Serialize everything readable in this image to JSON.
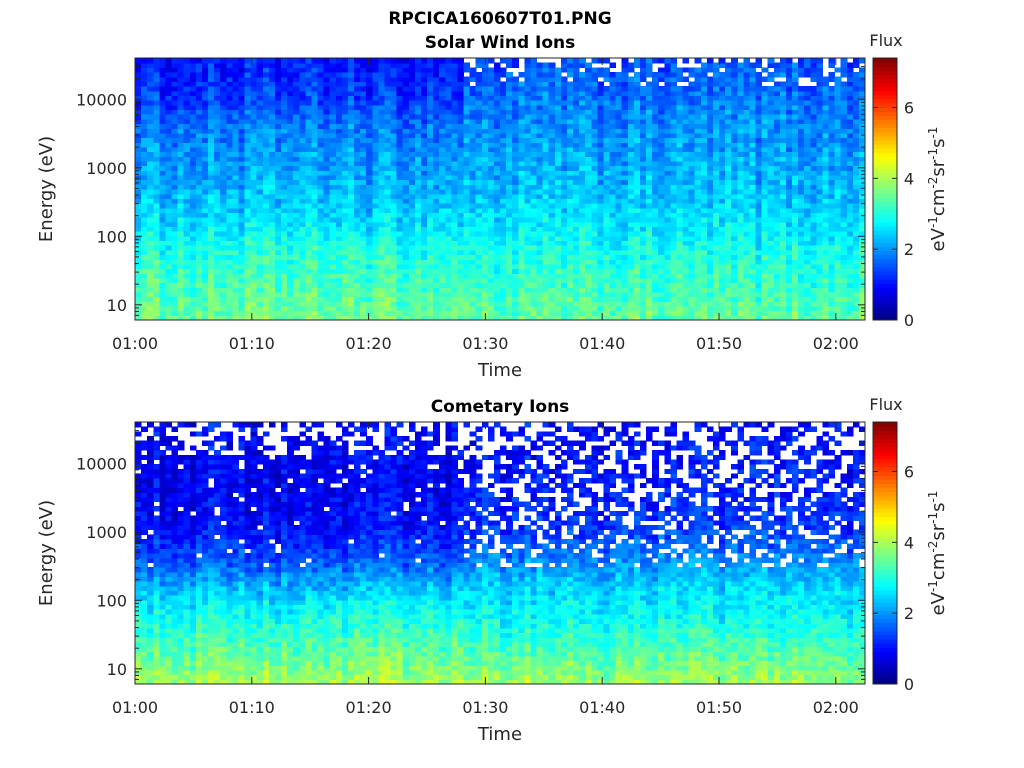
{
  "figure_title": "RPCICA160607T01.PNG",
  "chart_data": [
    {
      "type": "heatmap",
      "title": "Solar Wind Ions",
      "xlabel": "Time",
      "ylabel": "Energy (eV)",
      "x_range": [
        "01:00",
        "02:03"
      ],
      "x_ticks": [
        "01:00",
        "01:10",
        "01:20",
        "01:30",
        "01:40",
        "01:50",
        "02:00"
      ],
      "y_scale": "log",
      "y_range": [
        6,
        40000
      ],
      "y_ticks": [
        {
          "value": 10,
          "label": "10"
        },
        {
          "value": 100,
          "label": "100"
        },
        {
          "value": 1000,
          "label": "1000"
        },
        {
          "value": 10000,
          "label": "10000"
        }
      ],
      "colorbar": {
        "title": "Flux",
        "label_parts": [
          "eV",
          "-1",
          "cm",
          "-2",
          "sr",
          "-1",
          "s",
          "-1"
        ],
        "range": [
          0,
          7.4
        ],
        "ticks": [
          0,
          2,
          4,
          6
        ],
        "colormap": "jet"
      },
      "time_start_min": 0,
      "time_end_min": 62.5,
      "change_time_min": 28,
      "profile_before": [
        {
          "e": 6,
          "v": 3.6
        },
        {
          "e": 20,
          "v": 3.3
        },
        {
          "e": 60,
          "v": 3.0
        },
        {
          "e": 150,
          "v": 2.6
        },
        {
          "e": 400,
          "v": 2.3
        },
        {
          "e": 1200,
          "v": 2.05
        },
        {
          "e": 4000,
          "v": 1.8
        },
        {
          "e": 10000,
          "v": 1.35
        },
        {
          "e": 40000,
          "v": 1.05
        }
      ],
      "profile_after": [
        {
          "e": 6,
          "v": 3.5
        },
        {
          "e": 20,
          "v": 3.15
        },
        {
          "e": 60,
          "v": 2.9
        },
        {
          "e": 150,
          "v": 2.6
        },
        {
          "e": 400,
          "v": 2.35
        },
        {
          "e": 1200,
          "v": 2.15
        },
        {
          "e": 4000,
          "v": 1.95
        },
        {
          "e": 10000,
          "v": 1.75
        },
        {
          "e": 40000,
          "v": 1.45
        }
      ],
      "empty_above_ev_after": 15000,
      "empty_fraction_after": 0.22
    },
    {
      "type": "heatmap",
      "title": "Cometary Ions",
      "xlabel": "Time",
      "ylabel": "Energy (eV)",
      "x_range": [
        "01:00",
        "02:03"
      ],
      "x_ticks": [
        "01:00",
        "01:10",
        "01:20",
        "01:30",
        "01:40",
        "01:50",
        "02:00"
      ],
      "y_scale": "log",
      "y_range": [
        6,
        40000
      ],
      "y_ticks": [
        {
          "value": 10,
          "label": "10"
        },
        {
          "value": 100,
          "label": "100"
        },
        {
          "value": 1000,
          "label": "1000"
        },
        {
          "value": 10000,
          "label": "10000"
        }
      ],
      "colorbar": {
        "title": "Flux",
        "label_parts": [
          "eV",
          "-1",
          "cm",
          "-2",
          "sr",
          "-1",
          "s",
          "-1"
        ],
        "range": [
          0,
          7.4
        ],
        "ticks": [
          0,
          2,
          4,
          6
        ],
        "colormap": "jet"
      },
      "time_start_min": 0,
      "time_end_min": 62.5,
      "change_time_min": 28,
      "profile_before": [
        {
          "e": 6,
          "v": 4.0
        },
        {
          "e": 20,
          "v": 3.4
        },
        {
          "e": 60,
          "v": 2.9
        },
        {
          "e": 150,
          "v": 2.3
        },
        {
          "e": 400,
          "v": 1.5
        },
        {
          "e": 1200,
          "v": 1.0
        },
        {
          "e": 4000,
          "v": 0.85
        },
        {
          "e": 10000,
          "v": 0.9
        },
        {
          "e": 40000,
          "v": 0.95
        }
      ],
      "profile_after": [
        {
          "e": 6,
          "v": 3.9
        },
        {
          "e": 20,
          "v": 3.3
        },
        {
          "e": 60,
          "v": 2.8
        },
        {
          "e": 150,
          "v": 2.5
        },
        {
          "e": 400,
          "v": 1.9
        },
        {
          "e": 1200,
          "v": 1.3
        },
        {
          "e": 4000,
          "v": 1.15
        },
        {
          "e": 10000,
          "v": 1.0
        },
        {
          "e": 40000,
          "v": 0.95
        }
      ],
      "empty_above_ev_after": 300,
      "empty_fraction_after": 0.35
    }
  ]
}
